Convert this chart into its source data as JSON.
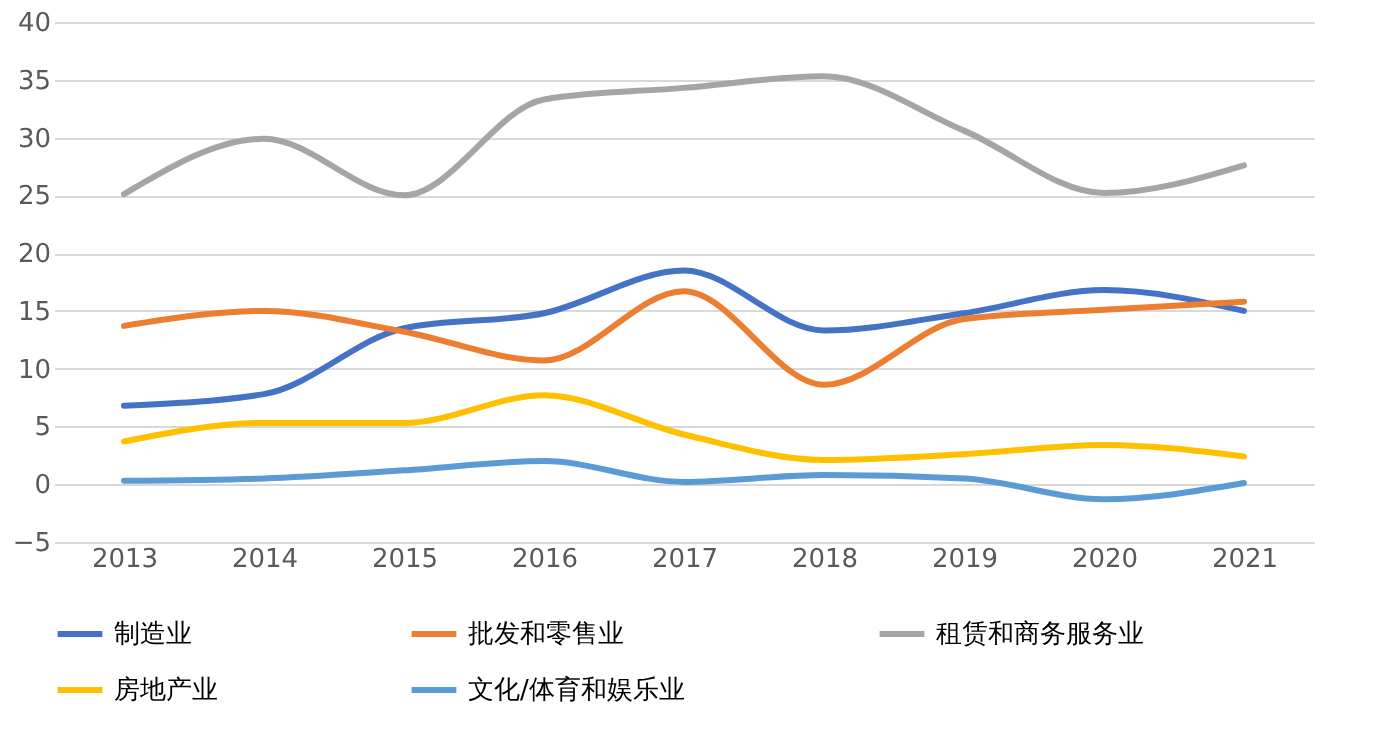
{
  "chart_data": {
    "type": "line",
    "categories": [
      "2013",
      "2014",
      "2015",
      "2016",
      "2017",
      "2018",
      "2019",
      "2020",
      "2021"
    ],
    "series": [
      {
        "name": "制造业",
        "color": "#4472c4",
        "values": [
          6.8,
          7.8,
          13.5,
          14.8,
          18.5,
          13.3,
          14.8,
          16.8,
          15.0
        ]
      },
      {
        "name": "批发和零售业",
        "color": "#ed7d31",
        "values": [
          13.7,
          15.0,
          13.2,
          10.7,
          16.7,
          8.6,
          14.3,
          15.1,
          15.8
        ]
      },
      {
        "name": "租赁和商务服务业",
        "color": "#a5a5a5",
        "values": [
          25.1,
          29.9,
          25.0,
          33.3,
          34.3,
          35.3,
          30.6,
          25.2,
          27.6
        ]
      },
      {
        "name": "房地产业",
        "color": "#ffc000",
        "values": [
          3.7,
          5.3,
          5.3,
          7.7,
          4.3,
          2.1,
          2.6,
          3.4,
          2.4
        ]
      },
      {
        "name": "文化/体育和娱乐业",
        "color": "#5b9bd5",
        "values": [
          0.3,
          0.5,
          1.2,
          2.0,
          0.2,
          0.8,
          0.5,
          -1.3,
          0.1
        ]
      }
    ],
    "ylim": [
      -5,
      40
    ],
    "yticks": [
      -5,
      0,
      5,
      10,
      15,
      20,
      25,
      30,
      35,
      40
    ],
    "grid": "y",
    "legend": "bottom",
    "marker": "none",
    "line_style": "solid"
  }
}
